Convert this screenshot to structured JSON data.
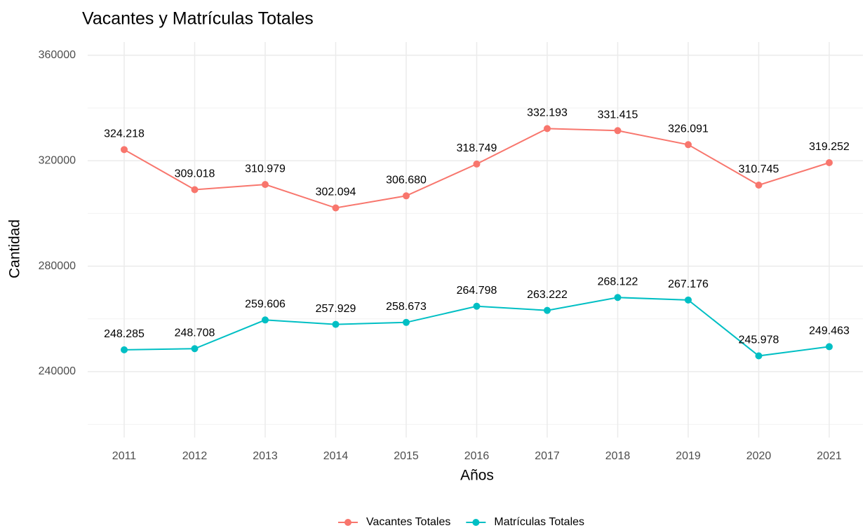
{
  "chart_data": {
    "type": "line",
    "title": "Vacantes y Matrículas Totales",
    "x_label": "Años",
    "y_label": "Cantidad",
    "categories": [
      "2011",
      "2012",
      "2013",
      "2014",
      "2015",
      "2016",
      "2017",
      "2018",
      "2019",
      "2020",
      "2021"
    ],
    "series": [
      {
        "name": "Vacantes Totales",
        "color": "#F8766D",
        "values": [
          324218,
          309018,
          310979,
          302094,
          306680,
          318749,
          332193,
          331415,
          326091,
          310745,
          319252
        ],
        "value_labels": [
          "324.218",
          "309.018",
          "310.979",
          "302.094",
          "306.680",
          "318.749",
          "332.193",
          "331.415",
          "326.091",
          "310.745",
          "319.252"
        ]
      },
      {
        "name": "Matrículas Totales",
        "color": "#00BFC4",
        "values": [
          248285,
          248708,
          259606,
          257929,
          258673,
          264798,
          263222,
          268122,
          267176,
          245978,
          249463
        ],
        "value_labels": [
          "248.285",
          "248.708",
          "259.606",
          "257.929",
          "258.673",
          "264.798",
          "263.222",
          "268.122",
          "267.176",
          "245.978",
          "249.463"
        ]
      }
    ],
    "ylim": [
      215000,
      365000
    ],
    "yticks": [
      240000,
      280000,
      320000,
      360000
    ],
    "grid": true,
    "legend": "bottom"
  }
}
